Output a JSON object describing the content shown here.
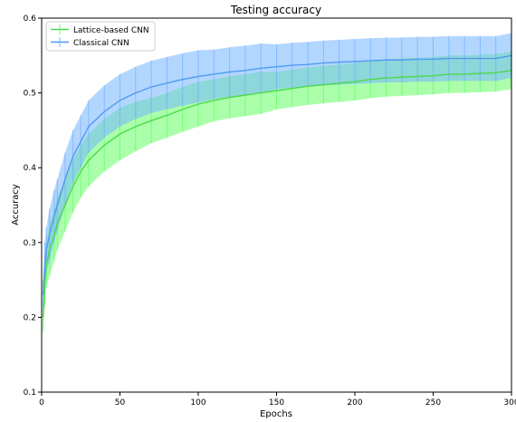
{
  "chart_data": {
    "type": "line",
    "title": "Testing accuracy",
    "xlabel": "Epochs",
    "ylabel": "Accuracy",
    "xlim": [
      0,
      300
    ],
    "ylim": [
      0.1,
      0.6
    ],
    "xticks": [
      0,
      50,
      100,
      150,
      200,
      250,
      300
    ],
    "yticks": [
      0.1,
      0.2,
      0.3,
      0.4,
      0.5,
      0.6
    ],
    "xtick_labels": [
      "0",
      "50",
      "100",
      "150",
      "200",
      "250",
      "300"
    ],
    "ytick_labels": [
      "0.1",
      "0.2",
      "0.3",
      "0.4",
      "0.5",
      "0.6"
    ],
    "grid": false,
    "legend_position": "top-left",
    "error_bars": true,
    "series": [
      {
        "name": "Lattice-based CNN",
        "color": "#4cd94c",
        "band_color": "#66ff66",
        "x": [
          1,
          2,
          3,
          5,
          8,
          10,
          15,
          20,
          25,
          30,
          40,
          50,
          60,
          70,
          80,
          90,
          100,
          110,
          120,
          130,
          140,
          150,
          160,
          170,
          180,
          190,
          200,
          210,
          220,
          230,
          240,
          250,
          260,
          270,
          280,
          290,
          300
        ],
        "y": [
          0.2,
          0.245,
          0.27,
          0.29,
          0.31,
          0.325,
          0.35,
          0.375,
          0.395,
          0.41,
          0.43,
          0.445,
          0.455,
          0.463,
          0.47,
          0.478,
          0.485,
          0.49,
          0.494,
          0.497,
          0.5,
          0.503,
          0.506,
          0.509,
          0.511,
          0.513,
          0.515,
          0.518,
          0.52,
          0.521,
          0.522,
          0.523,
          0.525,
          0.525,
          0.526,
          0.527,
          0.53
        ],
        "err": [
          0.02,
          0.03,
          0.03,
          0.035,
          0.035,
          0.035,
          0.035,
          0.035,
          0.035,
          0.035,
          0.035,
          0.035,
          0.033,
          0.03,
          0.03,
          0.03,
          0.03,
          0.028,
          0.028,
          0.028,
          0.028,
          0.025,
          0.025,
          0.025,
          0.025,
          0.025,
          0.025,
          0.025,
          0.025,
          0.025,
          0.025,
          0.025,
          0.025,
          0.025,
          0.025,
          0.025,
          0.025
        ]
      },
      {
        "name": "Classical CNN",
        "color": "#4f9bf0",
        "band_color": "#74b5ff",
        "x": [
          1,
          2,
          3,
          5,
          8,
          10,
          15,
          20,
          25,
          30,
          40,
          50,
          60,
          70,
          80,
          90,
          100,
          110,
          120,
          130,
          140,
          150,
          160,
          170,
          180,
          190,
          200,
          210,
          220,
          230,
          240,
          250,
          260,
          270,
          280,
          290,
          300
        ],
        "y": [
          0.23,
          0.27,
          0.29,
          0.31,
          0.335,
          0.35,
          0.385,
          0.415,
          0.435,
          0.455,
          0.475,
          0.49,
          0.5,
          0.508,
          0.513,
          0.518,
          0.522,
          0.525,
          0.528,
          0.53,
          0.533,
          0.535,
          0.537,
          0.538,
          0.54,
          0.541,
          0.542,
          0.543,
          0.544,
          0.544,
          0.545,
          0.545,
          0.546,
          0.546,
          0.546,
          0.546,
          0.55
        ],
        "err": [
          0.02,
          0.03,
          0.03,
          0.035,
          0.035,
          0.035,
          0.035,
          0.035,
          0.035,
          0.035,
          0.035,
          0.035,
          0.035,
          0.035,
          0.035,
          0.035,
          0.035,
          0.033,
          0.033,
          0.033,
          0.033,
          0.03,
          0.03,
          0.03,
          0.03,
          0.03,
          0.03,
          0.03,
          0.03,
          0.03,
          0.03,
          0.03,
          0.03,
          0.03,
          0.03,
          0.03,
          0.03
        ]
      }
    ]
  }
}
